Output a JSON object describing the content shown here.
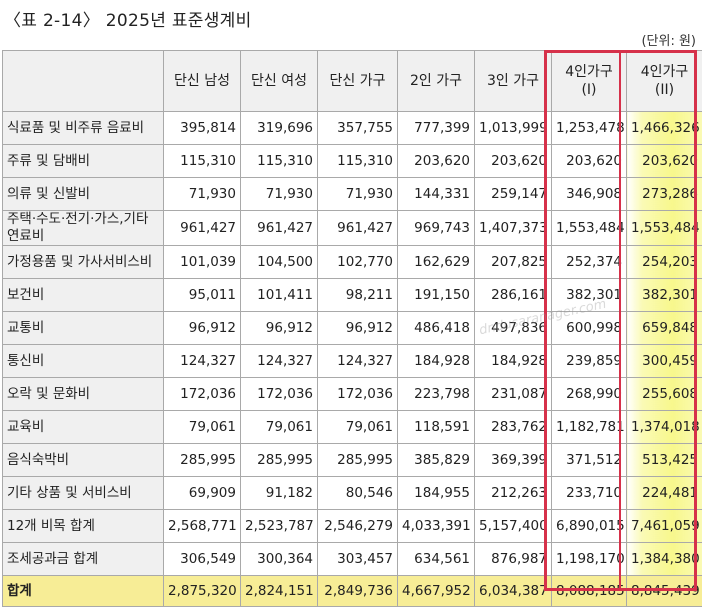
{
  "title": "〈표 2-14〉 2025년 표준생계비",
  "unit": "(단위: 원)",
  "columns": [
    "",
    "단신 남성",
    "단신 여성",
    "단신 가구",
    "2인 가구",
    "3인 가구",
    "4인가구\n(I)",
    "4인가구\n(II)"
  ],
  "rows": [
    {
      "label": "식료품 및 비주류 음료비",
      "values": [
        "395,814",
        "319,696",
        "357,755",
        "777,399",
        "1,013,999",
        "1,253,478",
        "1,466,326"
      ]
    },
    {
      "label": "주류 및 담배비",
      "values": [
        "115,310",
        "115,310",
        "115,310",
        "203,620",
        "203,620",
        "203,620",
        "203,620"
      ]
    },
    {
      "label": "의류 및 신발비",
      "values": [
        "71,930",
        "71,930",
        "71,930",
        "144,331",
        "259,147",
        "346,908",
        "273,286"
      ]
    },
    {
      "label": "주택·수도·전기·가스,기타연료비",
      "values": [
        "961,427",
        "961,427",
        "961,427",
        "969,743",
        "1,407,373",
        "1,553,484",
        "1,553,484"
      ]
    },
    {
      "label": "가정용품 및 가사서비스비",
      "values": [
        "101,039",
        "104,500",
        "102,770",
        "162,629",
        "207,825",
        "252,374",
        "254,203"
      ]
    },
    {
      "label": "보건비",
      "values": [
        "95,011",
        "101,411",
        "98,211",
        "191,150",
        "286,161",
        "382,301",
        "382,301"
      ]
    },
    {
      "label": "교통비",
      "values": [
        "96,912",
        "96,912",
        "96,912",
        "486,418",
        "497,836",
        "600,998",
        "659,848"
      ]
    },
    {
      "label": "통신비",
      "values": [
        "124,327",
        "124,327",
        "124,327",
        "184,928",
        "184,928",
        "239,859",
        "300,459"
      ]
    },
    {
      "label": "오락 및 문화비",
      "values": [
        "172,036",
        "172,036",
        "172,036",
        "223,798",
        "231,087",
        "268,990",
        "255,608"
      ]
    },
    {
      "label": "교육비",
      "values": [
        "79,061",
        "79,061",
        "79,061",
        "118,591",
        "283,762",
        "1,182,781",
        "1,374,018"
      ]
    },
    {
      "label": "음식숙박비",
      "values": [
        "285,995",
        "285,995",
        "285,995",
        "385,829",
        "369,399",
        "371,512",
        "513,425"
      ]
    },
    {
      "label": "기타 상품 및 서비스비",
      "values": [
        "69,909",
        "91,182",
        "80,546",
        "184,955",
        "212,263",
        "233,710",
        "224,481"
      ]
    },
    {
      "label": "12개 비목 합계",
      "values": [
        "2,568,771",
        "2,523,787",
        "2,546,279",
        "4,033,391",
        "5,157,400",
        "6,890,015",
        "7,461,059"
      ]
    },
    {
      "label": "조세공과금 합계",
      "values": [
        "306,549",
        "300,364",
        "303,457",
        "634,561",
        "876,987",
        "1,198,170",
        "1,384,380"
      ]
    }
  ],
  "total": {
    "label": "합계",
    "values": [
      "2,875,320",
      "2,824,151",
      "2,849,736",
      "4,667,952",
      "6,034,387",
      "8,088,185",
      "8,845,439"
    ]
  },
  "watermark": "dndusaranager.com",
  "colors": {
    "header_bg": "#f0f0f0",
    "highlight_yellow": "#f7ed96",
    "red_box": "#d6314a"
  }
}
